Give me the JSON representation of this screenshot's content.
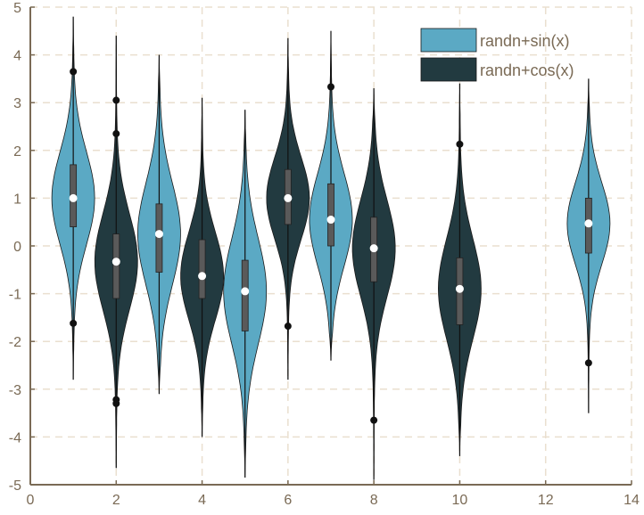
{
  "chart_data": {
    "type": "violin",
    "title": "",
    "xlabel": "",
    "ylabel": "",
    "xlim": [
      0,
      14
    ],
    "ylim": [
      -5,
      5
    ],
    "xticks": [
      0,
      2,
      4,
      6,
      8,
      10,
      12,
      14
    ],
    "yticks": [
      -5,
      -4,
      -3,
      -2,
      -1,
      0,
      1,
      2,
      3,
      4,
      5
    ],
    "grid": true,
    "legend_position": "top-right",
    "colors": {
      "series_sin": "#5ba9c4",
      "series_cos": "#223a40",
      "axis": "#7a6a55",
      "grid": "#eadfcf",
      "box": "#5a5a5a",
      "median": "#ffffff",
      "outlier": "#111111"
    },
    "series": [
      {
        "name": "randn+sin(x)",
        "color": "#5ba9c4"
      },
      {
        "name": "randn+cos(x)",
        "color": "#223a40"
      }
    ],
    "violins": [
      {
        "x": 1,
        "series": 0,
        "median": 1.0,
        "q1": 0.4,
        "q3": 1.7,
        "whisker_low": -1.5,
        "whisker_high": 3.5,
        "min": -2.8,
        "max": 4.8,
        "outliers": [
          3.65,
          -1.62
        ]
      },
      {
        "x": 2,
        "series": 1,
        "median": -0.33,
        "q1": -1.1,
        "q3": 0.25,
        "whisker_low": -3.1,
        "whisker_high": 2.2,
        "min": -4.65,
        "max": 4.4,
        "outliers": [
          3.05,
          2.35,
          -3.22,
          -3.3
        ]
      },
      {
        "x": 3,
        "series": 0,
        "median": 0.25,
        "q1": -0.55,
        "q3": 0.88,
        "whisker_low": -1.7,
        "whisker_high": 2.6,
        "min": -3.1,
        "max": 4.0,
        "outliers": []
      },
      {
        "x": 4,
        "series": 1,
        "median": -0.63,
        "q1": -1.1,
        "q3": 0.13,
        "whisker_low": -2.4,
        "whisker_high": 1.5,
        "min": -4.0,
        "max": 3.1,
        "outliers": []
      },
      {
        "x": 5,
        "series": 0,
        "median": -0.95,
        "q1": -1.78,
        "q3": -0.3,
        "whisker_low": -3.5,
        "whisker_high": 1.5,
        "min": -4.85,
        "max": 2.85,
        "outliers": []
      },
      {
        "x": 6,
        "series": 1,
        "median": 1.0,
        "q1": 0.45,
        "q3": 1.6,
        "whisker_low": -1.2,
        "whisker_high": 3.3,
        "min": -2.8,
        "max": 4.35,
        "outliers": [
          -1.68
        ]
      },
      {
        "x": 7,
        "series": 0,
        "median": 0.55,
        "q1": 0.0,
        "q3": 1.3,
        "whisker_low": -1.2,
        "whisker_high": 3.0,
        "min": -2.4,
        "max": 4.5,
        "outliers": [
          3.33
        ]
      },
      {
        "x": 8,
        "series": 1,
        "median": -0.05,
        "q1": -0.75,
        "q3": 0.6,
        "whisker_low": -2.5,
        "whisker_high": 2.0,
        "min": -4.9,
        "max": 3.3,
        "outliers": [
          -3.65
        ]
      },
      {
        "x": 10,
        "series": 1,
        "median": -0.9,
        "q1": -1.65,
        "q3": -0.25,
        "whisker_low": -3.1,
        "whisker_high": 1.7,
        "min": -4.4,
        "max": 3.4,
        "outliers": [
          2.13
        ]
      },
      {
        "x": 13,
        "series": 0,
        "median": 0.47,
        "q1": -0.15,
        "q3": 1.0,
        "whisker_low": -1.6,
        "whisker_high": 2.7,
        "min": -3.5,
        "max": 3.5,
        "outliers": [
          -2.45
        ]
      }
    ]
  }
}
